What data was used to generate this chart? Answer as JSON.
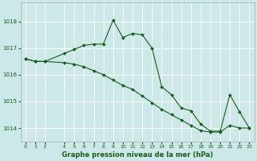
{
  "background_color": "#cce8e8",
  "grid_color": "#ffffff",
  "line_color": "#1a5c1a",
  "marker_color": "#1a5c1a",
  "title": "Graphe pression niveau de la mer (hPa)",
  "xlim": [
    -0.5,
    23.5
  ],
  "ylim": [
    1013.5,
    1018.7
  ],
  "yticks": [
    1014,
    1015,
    1016,
    1017,
    1018
  ],
  "xtick_positions": [
    0,
    1,
    2,
    4,
    5,
    6,
    7,
    8,
    9,
    10,
    11,
    12,
    13,
    14,
    15,
    16,
    17,
    18,
    19,
    20,
    21,
    22,
    23
  ],
  "xtick_labels": [
    "0",
    "1",
    "2",
    "4",
    "5",
    "6",
    "7",
    "8",
    "9",
    "10",
    "11",
    "12",
    "13",
    "14",
    "15",
    "16",
    "17",
    "18",
    "19",
    "20",
    "21",
    "22",
    "23"
  ],
  "series1_x": [
    0,
    1,
    2,
    4,
    5,
    6,
    7,
    8,
    9,
    10,
    11,
    12,
    13,
    14,
    15,
    16,
    17,
    18,
    19,
    20,
    21,
    22,
    23
  ],
  "series1_y": [
    1016.6,
    1016.5,
    1016.5,
    1016.8,
    1016.95,
    1017.1,
    1017.15,
    1017.15,
    1018.05,
    1017.4,
    1017.55,
    1017.5,
    1017.0,
    1015.55,
    1015.25,
    1014.75,
    1014.65,
    1014.15,
    1013.88,
    1013.88,
    1015.25,
    1014.6,
    1014.0
  ],
  "series2_x": [
    0,
    1,
    2,
    4,
    5,
    6,
    7,
    8,
    9,
    10,
    11,
    12,
    13,
    14,
    15,
    16,
    17,
    18,
    19,
    20,
    21,
    22,
    23
  ],
  "series2_y": [
    1016.6,
    1016.5,
    1016.5,
    1016.45,
    1016.4,
    1016.3,
    1016.15,
    1016.0,
    1015.8,
    1015.6,
    1015.45,
    1015.2,
    1014.95,
    1014.7,
    1014.5,
    1014.3,
    1014.1,
    1013.9,
    1013.85,
    1013.85,
    1014.1,
    1014.0,
    1014.0
  ]
}
